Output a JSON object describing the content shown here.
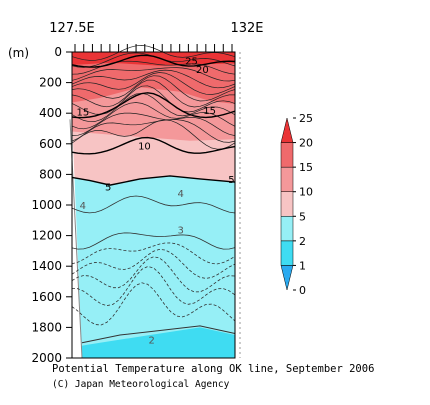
{
  "chart_data": {
    "type": "contour",
    "title": "Potential Temperature along OK line, September 2006",
    "credit": "(C) Japan Meteorological Agency",
    "x_tick_labels": [
      "127.5E",
      "132E"
    ],
    "xlim": [
      127.5,
      132
    ],
    "y_unit_label": "(m)",
    "ylim": [
      0,
      2000
    ],
    "y_inverted": true,
    "y_ticks": [
      0,
      200,
      400,
      600,
      800,
      1000,
      1200,
      1400,
      1600,
      1800,
      2000
    ],
    "station_count": 19,
    "colorbar": {
      "levels": [
        0,
        1,
        2,
        5,
        10,
        15,
        20,
        25
      ],
      "tick_labels": [
        "0",
        "1",
        "2",
        "5",
        "10",
        "15",
        "20",
        "25"
      ],
      "colors": [
        "#2aaaf0",
        "#3fdcf2",
        "#96eff6",
        "#f7c4c4",
        "#f4989a",
        "#ef6a6c",
        "#ea3436"
      ]
    },
    "contour_labels": [
      {
        "text": "25",
        "lon": 130.8,
        "depth": 55
      },
      {
        "text": "20",
        "lon": 131.1,
        "depth": 110
      },
      {
        "text": "15",
        "lon": 127.8,
        "depth": 390
      },
      {
        "text": "15",
        "lon": 131.3,
        "depth": 380
      },
      {
        "text": "10",
        "lon": 129.5,
        "depth": 610
      },
      {
        "text": "5",
        "lon": 128.5,
        "depth": 880
      },
      {
        "text": "5",
        "lon": 131.9,
        "depth": 830
      },
      {
        "text": "4",
        "lon": 127.8,
        "depth": 1000
      },
      {
        "text": "4",
        "lon": 130.5,
        "depth": 920
      },
      {
        "text": "3",
        "lon": 130.5,
        "depth": 1160
      },
      {
        "text": "2",
        "lon": 129.7,
        "depth": 1880
      }
    ]
  }
}
